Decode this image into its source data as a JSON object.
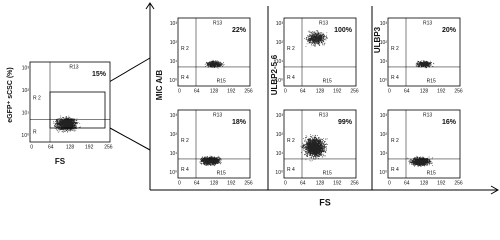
{
  "left": {
    "y_label": "eGFP⁺ sCSC (%)",
    "x_label": "FS",
    "percent": "15%",
    "labels": [
      "R13",
      "R 2",
      "R"
    ]
  },
  "row_labels": [
    "MIC A/B",
    "ULBP2-5-6",
    "ULBP3"
  ],
  "x_label": "FS",
  "panels": [
    {
      "percent": "22%",
      "labels": [
        "R13",
        "R 2",
        "R 4",
        "R15"
      ]
    },
    {
      "percent": "18%",
      "labels": [
        "R13",
        "R 2",
        "R 4",
        "R15"
      ]
    },
    {
      "percent": "100%",
      "labels": [
        "R13",
        "R 2",
        "R 4",
        "R15"
      ]
    },
    {
      "percent": "99%",
      "labels": [
        "R13",
        "R 2",
        "R 4",
        "R15"
      ]
    },
    {
      "percent": "20%",
      "labels": [
        "R13",
        "R 2",
        "R 4",
        "R15"
      ]
    },
    {
      "percent": "16%",
      "labels": [
        "R13",
        "R 2",
        "R 4",
        "R15"
      ]
    }
  ],
  "xticks": [
    "0",
    "64",
    "128",
    "192",
    "256"
  ],
  "yticks": [
    "10⁰",
    "10¹",
    "10²",
    "10³"
  ]
}
